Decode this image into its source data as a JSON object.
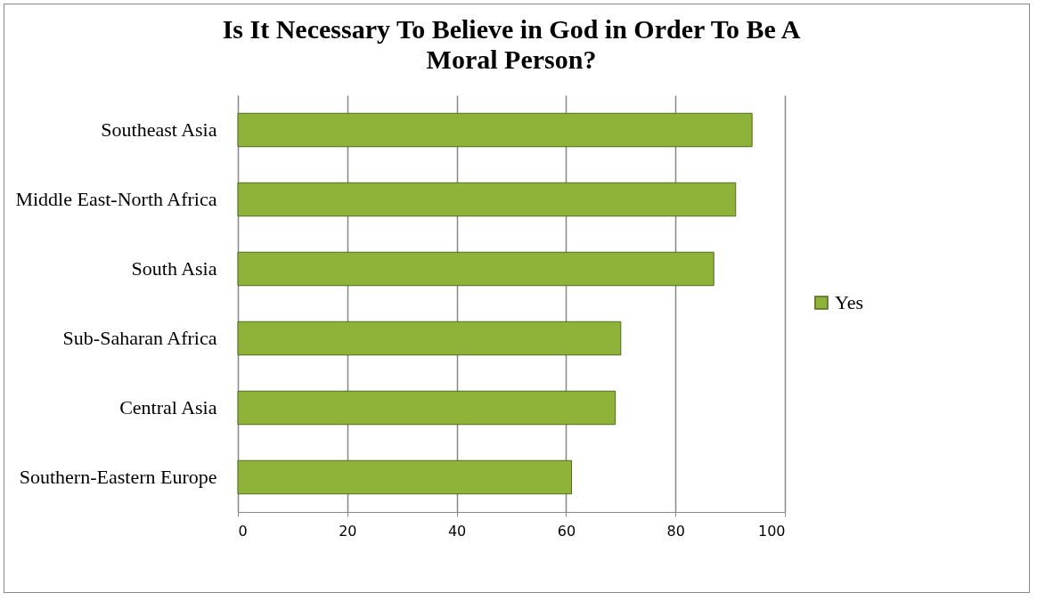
{
  "chart_data": {
    "type": "bar",
    "orientation": "horizontal",
    "title": "Is It Necessary To Believe in God in Order To Be A Moral Person?",
    "categories": [
      "Southeast Asia",
      "Middle East-North Africa",
      "South Asia",
      "Sub-Saharan Africa",
      "Central Asia",
      "Southern-Eastern Europe"
    ],
    "series": [
      {
        "name": "Yes",
        "color": "#8fb339",
        "values": [
          94,
          91,
          87,
          70,
          69,
          61
        ]
      }
    ],
    "xlim": [
      0,
      100
    ],
    "xticks": [
      0,
      20,
      40,
      60,
      80,
      100
    ],
    "grid": "x",
    "legend": "right"
  }
}
